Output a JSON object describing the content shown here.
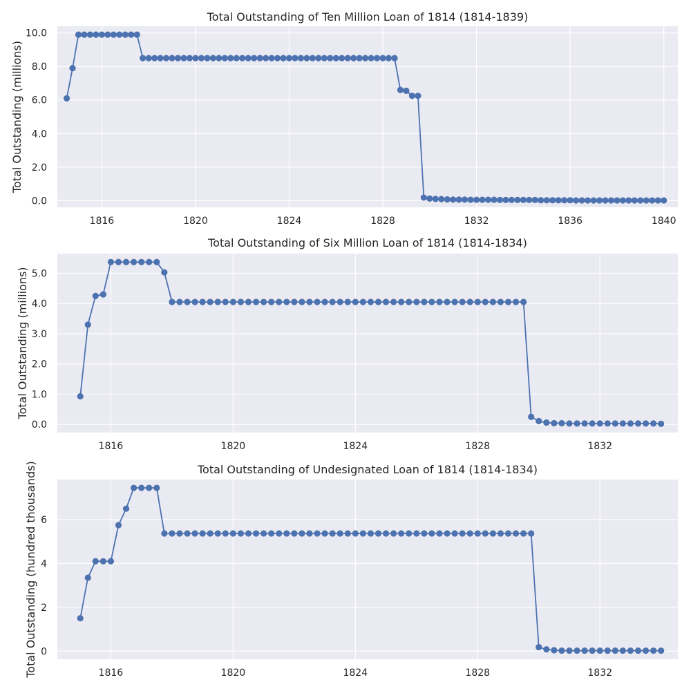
{
  "chart_data": [
    {
      "type": "line",
      "title": "Total Outstanding of Ten Million Loan of 1814 (1814-1839)",
      "xlabel": "",
      "ylabel": "Total Outstanding (millions)",
      "xlim": [
        1814.1,
        1840.6
      ],
      "ylim": [
        -0.4,
        10.4
      ],
      "xticks": [
        1816,
        1820,
        1824,
        1828,
        1832,
        1836,
        1840
      ],
      "yticks": [
        0,
        2,
        4,
        6,
        8,
        10
      ],
      "ytick_labels": [
        "0.0",
        "2.0",
        "4.0",
        "6.0",
        "8.0",
        "10.0"
      ],
      "grid": true,
      "color": "#4c72b0",
      "series": [
        {
          "x": [
            1814.5,
            1814.75,
            1815.0,
            1815.25,
            1815.5,
            1815.75,
            1816.0,
            1816.25,
            1816.5,
            1816.75,
            1817.0,
            1817.25,
            1817.5,
            1817.75,
            1818.0,
            1818.25,
            1818.5,
            1818.75,
            1819.0,
            1819.25,
            1819.5,
            1819.75,
            1820.0,
            1820.25,
            1820.5,
            1820.75,
            1821.0,
            1821.25,
            1821.5,
            1821.75,
            1822.0,
            1822.25,
            1822.5,
            1822.75,
            1823.0,
            1823.25,
            1823.5,
            1823.75,
            1824.0,
            1824.25,
            1824.5,
            1824.75,
            1825.0,
            1825.25,
            1825.5,
            1825.75,
            1826.0,
            1826.25,
            1826.5,
            1826.75,
            1827.0,
            1827.25,
            1827.5,
            1827.75,
            1828.0,
            1828.25,
            1828.5,
            1828.75,
            1829.0,
            1829.25,
            1829.5,
            1829.75,
            1830.0,
            1830.25,
            1830.5,
            1830.75,
            1831.0,
            1831.25,
            1831.5,
            1831.75,
            1832.0,
            1832.25,
            1832.5,
            1832.75,
            1833.0,
            1833.25,
            1833.5,
            1833.75,
            1834.0,
            1834.25,
            1834.5,
            1834.75,
            1835.0,
            1835.25,
            1835.5,
            1835.75,
            1836.0,
            1836.25,
            1836.5,
            1836.75,
            1837.0,
            1837.25,
            1837.5,
            1837.75,
            1838.0,
            1838.25,
            1838.5,
            1838.75,
            1839.0,
            1839.25,
            1839.5,
            1839.75,
            1840.0
          ],
          "y": [
            6.1,
            7.9,
            9.9,
            9.9,
            9.9,
            9.9,
            9.9,
            9.9,
            9.9,
            9.9,
            9.9,
            9.9,
            9.9,
            8.5,
            8.5,
            8.5,
            8.5,
            8.5,
            8.5,
            8.5,
            8.5,
            8.5,
            8.5,
            8.5,
            8.5,
            8.5,
            8.5,
            8.5,
            8.5,
            8.5,
            8.5,
            8.5,
            8.5,
            8.5,
            8.5,
            8.5,
            8.5,
            8.5,
            8.5,
            8.5,
            8.5,
            8.5,
            8.5,
            8.5,
            8.5,
            8.5,
            8.5,
            8.5,
            8.5,
            8.5,
            8.5,
            8.5,
            8.5,
            8.5,
            8.5,
            8.5,
            8.5,
            6.6,
            6.55,
            6.25,
            6.25,
            0.18,
            0.12,
            0.1,
            0.09,
            0.07,
            0.06,
            0.06,
            0.06,
            0.05,
            0.05,
            0.05,
            0.05,
            0.05,
            0.04,
            0.04,
            0.04,
            0.04,
            0.04,
            0.04,
            0.04,
            0.02,
            0.02,
            0.02,
            0.02,
            0.02,
            0.02,
            0.01,
            0.01,
            0.01,
            0.01,
            0.01,
            0.01,
            0.01,
            0.01,
            0.01,
            0.01,
            0.01,
            0.01,
            0.01,
            0.01,
            0.01,
            0.01
          ]
        }
      ]
    },
    {
      "type": "line",
      "title": "Total Outstanding of Six Million Loan of 1814 (1814-1834)",
      "xlabel": "",
      "ylabel": "Total Outstanding (millions)",
      "xlim": [
        1814.25,
        1834.55
      ],
      "ylim": [
        -0.27,
        5.65
      ],
      "xticks": [
        1816,
        1820,
        1824,
        1828,
        1832
      ],
      "yticks": [
        0,
        1,
        2,
        3,
        4,
        5
      ],
      "ytick_labels": [
        "0.0",
        "1.0",
        "2.0",
        "3.0",
        "4.0",
        "5.0"
      ],
      "grid": true,
      "color": "#4c72b0",
      "series": [
        {
          "x": [
            1815.0,
            1815.25,
            1815.5,
            1815.75,
            1816.0,
            1816.25,
            1816.5,
            1816.75,
            1817.0,
            1817.25,
            1817.5,
            1817.75,
            1818.0,
            1818.25,
            1818.5,
            1818.75,
            1819.0,
            1819.25,
            1819.5,
            1819.75,
            1820.0,
            1820.25,
            1820.5,
            1820.75,
            1821.0,
            1821.25,
            1821.5,
            1821.75,
            1822.0,
            1822.25,
            1822.5,
            1822.75,
            1823.0,
            1823.25,
            1823.5,
            1823.75,
            1824.0,
            1824.25,
            1824.5,
            1824.75,
            1825.0,
            1825.25,
            1825.5,
            1825.75,
            1826.0,
            1826.25,
            1826.5,
            1826.75,
            1827.0,
            1827.25,
            1827.5,
            1827.75,
            1828.0,
            1828.25,
            1828.5,
            1828.75,
            1829.0,
            1829.25,
            1829.5,
            1829.75,
            1830.0,
            1830.25,
            1830.5,
            1830.75,
            1831.0,
            1831.25,
            1831.5,
            1831.75,
            1832.0,
            1832.25,
            1832.5,
            1832.75,
            1833.0,
            1833.25,
            1833.5,
            1833.75,
            1834.0
          ],
          "y": [
            0.93,
            3.3,
            4.25,
            4.3,
            5.37,
            5.37,
            5.37,
            5.37,
            5.37,
            5.37,
            5.37,
            5.03,
            4.05,
            4.05,
            4.05,
            4.05,
            4.05,
            4.05,
            4.05,
            4.05,
            4.05,
            4.05,
            4.05,
            4.05,
            4.05,
            4.05,
            4.05,
            4.05,
            4.05,
            4.05,
            4.05,
            4.05,
            4.05,
            4.05,
            4.05,
            4.05,
            4.05,
            4.05,
            4.05,
            4.05,
            4.05,
            4.05,
            4.05,
            4.05,
            4.05,
            4.05,
            4.05,
            4.05,
            4.05,
            4.05,
            4.05,
            4.05,
            4.05,
            4.05,
            4.05,
            4.05,
            4.05,
            4.05,
            4.05,
            0.25,
            0.11,
            0.06,
            0.04,
            0.04,
            0.03,
            0.03,
            0.03,
            0.03,
            0.03,
            0.03,
            0.03,
            0.03,
            0.03,
            0.03,
            0.03,
            0.03,
            0.02
          ]
        }
      ]
    },
    {
      "type": "line",
      "title": "Total Outstanding of Undesignated Loan of 1814 (1814-1834)",
      "xlabel": "",
      "ylabel": "Total Outstanding (hundred thousands)",
      "xlim": [
        1814.25,
        1834.55
      ],
      "ylim": [
        -0.37,
        7.83
      ],
      "xticks": [
        1816,
        1820,
        1824,
        1828,
        1832
      ],
      "yticks": [
        0,
        2,
        4,
        6
      ],
      "ytick_labels": [
        "0",
        "2",
        "4",
        "6"
      ],
      "grid": true,
      "color": "#4c72b0",
      "series": [
        {
          "x": [
            1815.0,
            1815.25,
            1815.5,
            1815.75,
            1816.0,
            1816.25,
            1816.5,
            1816.75,
            1817.0,
            1817.25,
            1817.5,
            1817.75,
            1818.0,
            1818.25,
            1818.5,
            1818.75,
            1819.0,
            1819.25,
            1819.5,
            1819.75,
            1820.0,
            1820.25,
            1820.5,
            1820.75,
            1821.0,
            1821.25,
            1821.5,
            1821.75,
            1822.0,
            1822.25,
            1822.5,
            1822.75,
            1823.0,
            1823.25,
            1823.5,
            1823.75,
            1824.0,
            1824.25,
            1824.5,
            1824.75,
            1825.0,
            1825.25,
            1825.5,
            1825.75,
            1826.0,
            1826.25,
            1826.5,
            1826.75,
            1827.0,
            1827.25,
            1827.5,
            1827.75,
            1828.0,
            1828.25,
            1828.5,
            1828.75,
            1829.0,
            1829.25,
            1829.5,
            1829.75,
            1830.0,
            1830.25,
            1830.5,
            1830.75,
            1831.0,
            1831.25,
            1831.5,
            1831.75,
            1832.0,
            1832.25,
            1832.5,
            1832.75,
            1833.0,
            1833.25,
            1833.5,
            1833.75,
            1834.0
          ],
          "y": [
            1.5,
            3.35,
            4.1,
            4.1,
            4.1,
            5.75,
            6.5,
            7.45,
            7.45,
            7.45,
            7.45,
            5.37,
            5.37,
            5.37,
            5.37,
            5.37,
            5.37,
            5.37,
            5.37,
            5.37,
            5.37,
            5.37,
            5.37,
            5.37,
            5.37,
            5.37,
            5.37,
            5.37,
            5.37,
            5.37,
            5.37,
            5.37,
            5.37,
            5.37,
            5.37,
            5.37,
            5.37,
            5.37,
            5.37,
            5.37,
            5.37,
            5.37,
            5.37,
            5.37,
            5.37,
            5.37,
            5.37,
            5.37,
            5.37,
            5.37,
            5.37,
            5.37,
            5.37,
            5.37,
            5.37,
            5.37,
            5.37,
            5.37,
            5.37,
            5.37,
            0.18,
            0.08,
            0.04,
            0.02,
            0.02,
            0.02,
            0.02,
            0.02,
            0.02,
            0.02,
            0.02,
            0.02,
            0.02,
            0.02,
            0.02,
            0.02,
            0.02
          ]
        }
      ]
    }
  ]
}
